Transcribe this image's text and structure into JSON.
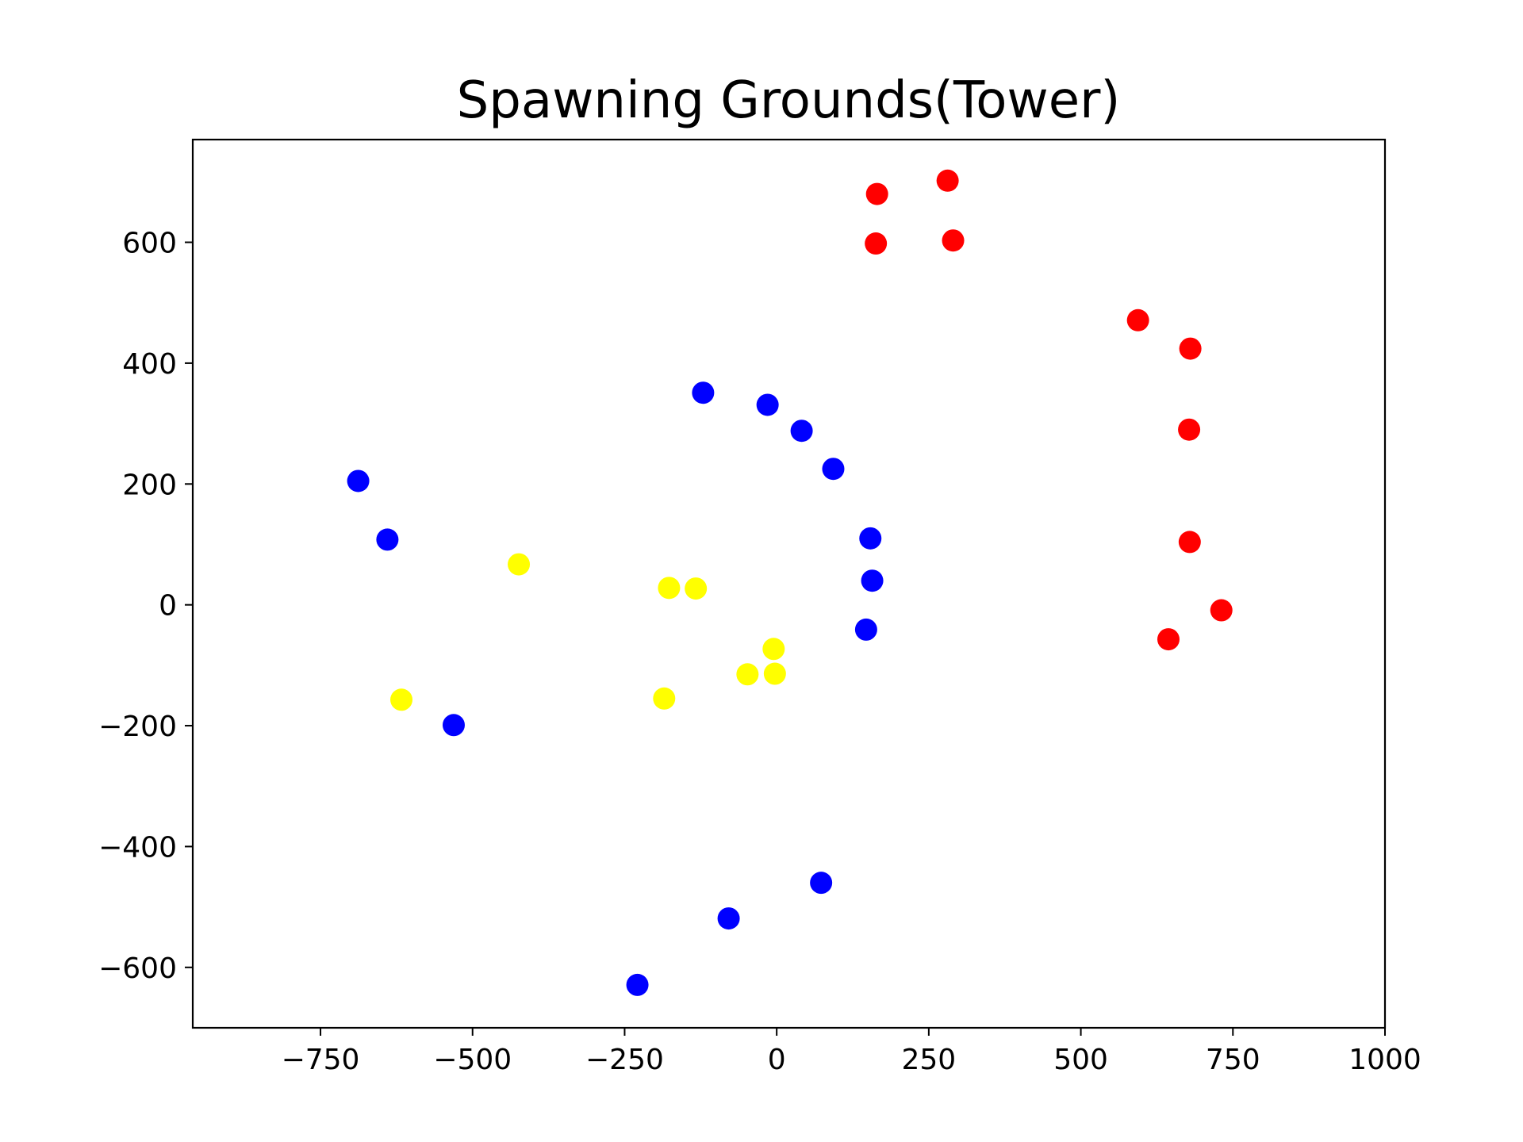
{
  "chart_data": {
    "type": "scatter",
    "title": "Spawning Grounds(Tower)",
    "xlabel": "",
    "ylabel": "",
    "xlim": [
      -960,
      1000
    ],
    "ylim": [
      -700,
      770
    ],
    "grid": false,
    "xticks": [
      -750,
      -500,
      -250,
      0,
      250,
      500,
      750,
      1000
    ],
    "yticks": [
      600,
      400,
      200,
      0,
      -200,
      -400,
      -600
    ],
    "xtick_labels": [
      "−750",
      "−500",
      "−250",
      "0",
      "250",
      "500",
      "750",
      "1000"
    ],
    "ytick_labels": [
      "600",
      "400",
      "200",
      "0",
      "−200",
      "−400",
      "−600"
    ],
    "series": [
      {
        "color": "#ff0000",
        "points": [
          [
            165,
            680
          ],
          [
            281,
            702
          ],
          [
            163,
            598
          ],
          [
            290,
            603
          ],
          [
            594,
            471
          ],
          [
            680,
            424
          ],
          [
            678,
            290
          ],
          [
            679,
            104
          ],
          [
            731,
            -9
          ],
          [
            644,
            -57
          ]
        ]
      },
      {
        "color": "#0000ff",
        "points": [
          [
            -121,
            351
          ],
          [
            -15,
            331
          ],
          [
            41,
            288
          ],
          [
            93,
            225
          ],
          [
            154,
            110
          ],
          [
            157,
            40
          ],
          [
            147,
            -41
          ],
          [
            -688,
            205
          ],
          [
            -640,
            108
          ],
          [
            -531,
            -199
          ],
          [
            73,
            -460
          ],
          [
            -79,
            -519
          ],
          [
            -229,
            -629
          ]
        ]
      },
      {
        "color": "#ffff00",
        "points": [
          [
            -424,
            67
          ],
          [
            -177,
            28
          ],
          [
            -133,
            27
          ],
          [
            -5,
            -73
          ],
          [
            -48,
            -115
          ],
          [
            -3,
            -114
          ],
          [
            -185,
            -155
          ],
          [
            -617,
            -157
          ]
        ]
      }
    ]
  }
}
